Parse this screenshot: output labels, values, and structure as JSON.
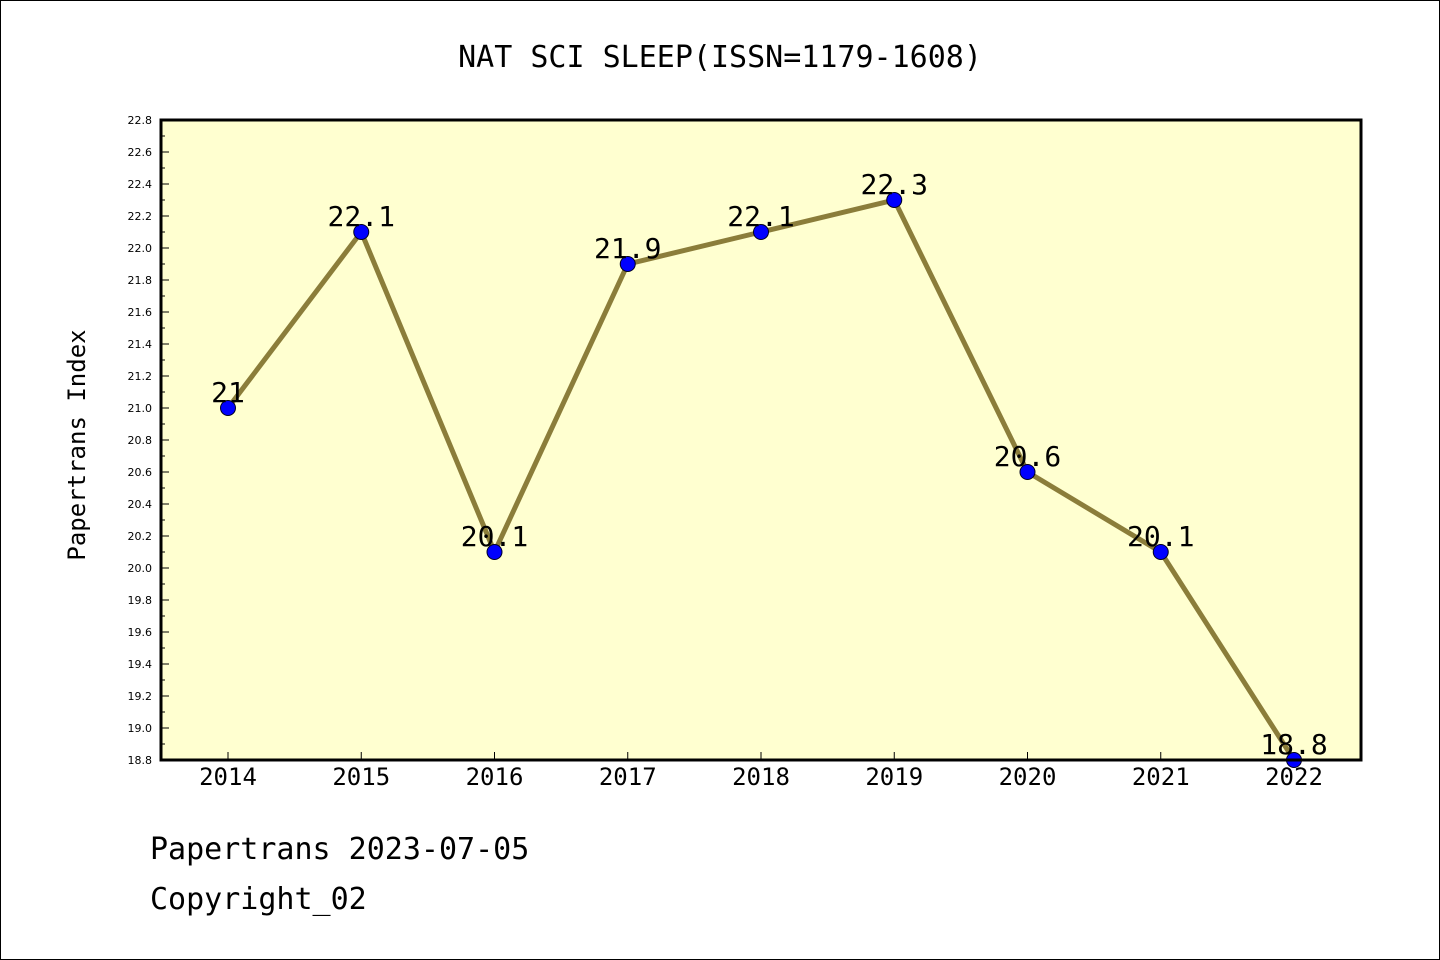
{
  "chart_data": {
    "type": "line",
    "title": "NAT SCI SLEEP(ISSN=1179-1608)",
    "ylabel": "Papertrans Index",
    "xlabel": "",
    "x": [
      "2014",
      "2015",
      "2016",
      "2017",
      "2018",
      "2019",
      "2020",
      "2021",
      "2022"
    ],
    "series": [
      {
        "values": [
          21,
          22.1,
          20.1,
          21.9,
          22.1,
          22.3,
          20.6,
          20.1,
          18.8
        ],
        "data_labels": [
          "21",
          "22.1",
          "20.1",
          "21.9",
          "22.1",
          "22.3",
          "20.6",
          "20.1",
          "18.8"
        ],
        "line_color": "#8b7d3a",
        "marker_color": "#0000ff"
      }
    ],
    "ylim": [
      18.8,
      22.8
    ],
    "yticks": [
      "18.8",
      "19.0",
      "19.2",
      "19.4",
      "19.6",
      "19.8",
      "20.0",
      "20.2",
      "20.4",
      "20.6",
      "20.8",
      "21.0",
      "21.2",
      "21.4",
      "21.6",
      "21.8",
      "22.0",
      "22.2",
      "22.4",
      "22.6",
      "22.8"
    ],
    "grid": false,
    "plot_background": "#ffffd0"
  },
  "footer": {
    "line1": "Papertrans 2023-07-05",
    "line2": "Copyright_02"
  }
}
